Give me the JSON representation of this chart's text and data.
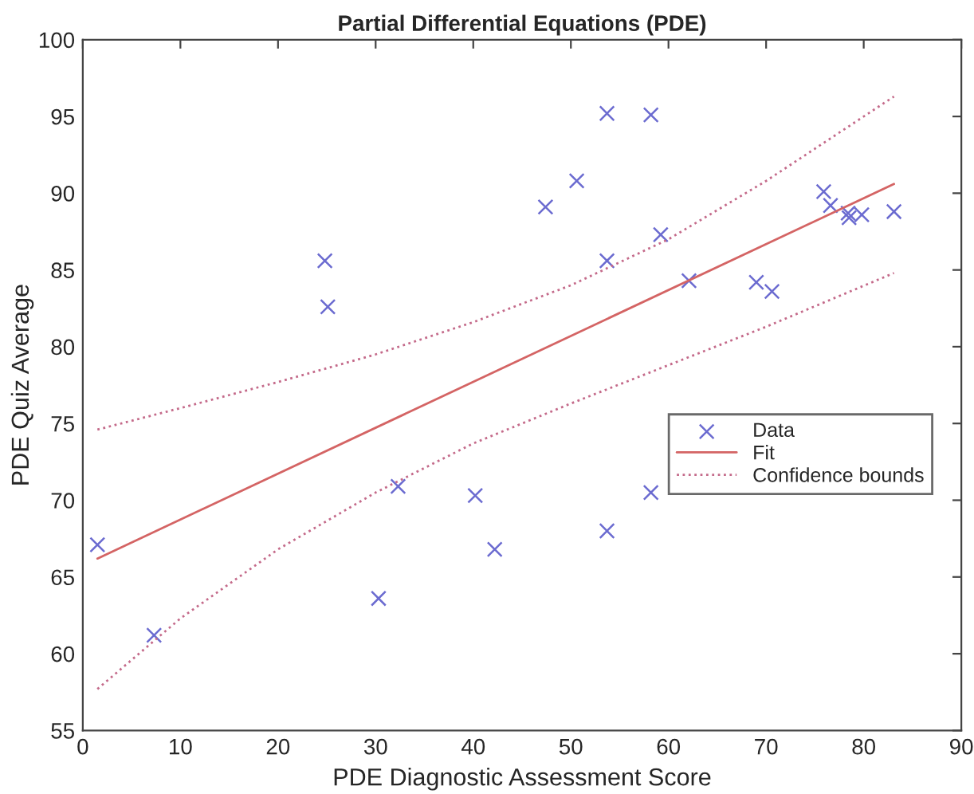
{
  "chart_data": {
    "type": "scatter",
    "title": "Partial Differential Equations (PDE)",
    "xlabel": "PDE Diagnostic Assessment Score",
    "ylabel": "PDE Quiz Average",
    "xlim": [
      0,
      90
    ],
    "xticks": [
      0,
      10,
      20,
      30,
      40,
      50,
      60,
      70,
      80,
      90
    ],
    "ylim": [
      55,
      100
    ],
    "yticks": [
      55,
      60,
      65,
      70,
      75,
      80,
      85,
      90,
      95,
      100
    ],
    "grid": false,
    "legend": "right",
    "series": [
      {
        "name": "Data",
        "marker": "cross",
        "color": "#6b6bd0",
        "x": [
          1.5,
          7.3,
          24.8,
          25.1,
          30.3,
          32.3,
          40.2,
          42.2,
          47.4,
          50.6,
          53.7,
          53.7,
          53.7,
          58.2,
          58.2,
          59.2,
          62.1,
          69.0,
          70.6,
          75.9,
          76.6,
          78.4,
          78.5,
          79.8,
          83.1
        ],
        "values": [
          67.1,
          61.2,
          85.6,
          82.6,
          63.6,
          70.9,
          70.3,
          66.8,
          89.1,
          90.8,
          95.2,
          85.6,
          68.0,
          95.1,
          70.5,
          87.3,
          84.3,
          84.2,
          83.6,
          90.1,
          89.2,
          88.7,
          88.4,
          88.6,
          88.8
        ]
      },
      {
        "name": "Fit",
        "type": "line",
        "line_style": "solid",
        "color": "#d46464",
        "x": [
          1.5,
          83.1
        ],
        "values": [
          66.2,
          90.6
        ]
      },
      {
        "name": "Confidence bounds",
        "type": "line",
        "line_style": "dotted",
        "color": "#c46a8a",
        "x": [
          1.5,
          10,
          20,
          30,
          40,
          50,
          60,
          70,
          83.1
        ],
        "values": [
          74.6,
          76.0,
          77.7,
          79.5,
          81.6,
          84.0,
          87.0,
          90.8,
          96.3
        ]
      },
      {
        "type": "line",
        "line_style": "dotted",
        "color": "#c46a8a",
        "x": [
          1.5,
          10,
          20,
          30,
          40,
          50,
          60,
          70,
          83.1
        ],
        "values": [
          57.7,
          62.3,
          66.8,
          70.5,
          73.7,
          76.3,
          78.8,
          81.3,
          84.8
        ]
      }
    ]
  }
}
